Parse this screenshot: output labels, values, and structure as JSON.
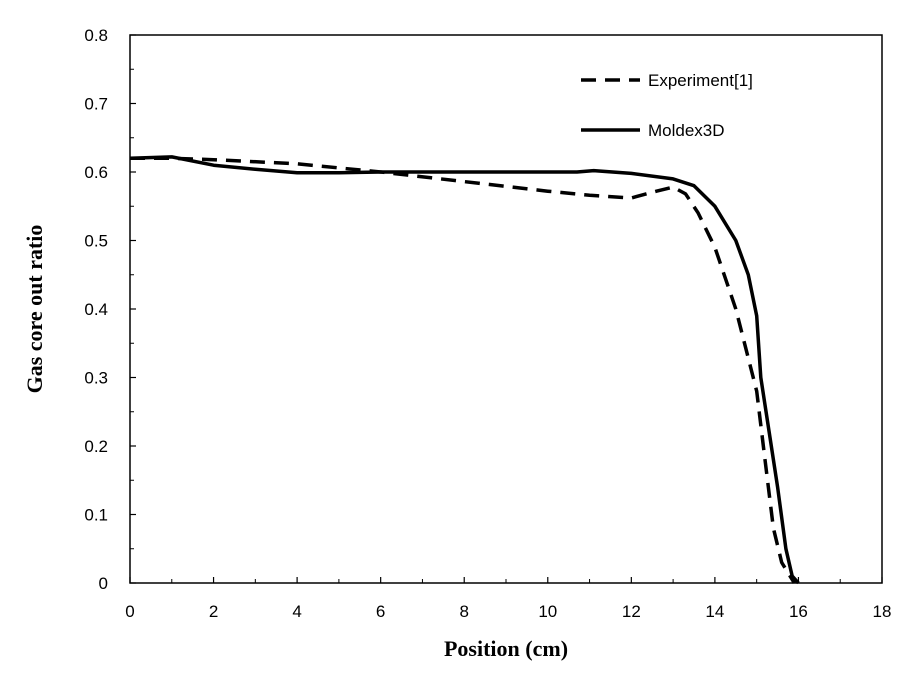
{
  "chart_data": {
    "type": "line",
    "xlabel": "Position (cm)",
    "ylabel": "Gas core out ratio",
    "xlim": [
      0,
      18
    ],
    "ylim": [
      0,
      0.8
    ],
    "x_ticks": [
      0,
      2,
      4,
      6,
      8,
      10,
      12,
      14,
      16,
      18
    ],
    "y_ticks": [
      0,
      0.1,
      0.2,
      0.3,
      0.4,
      0.5,
      0.6,
      0.7,
      0.8
    ],
    "x_tick_labels": [
      "0",
      "2",
      "4",
      "6",
      "8",
      "10",
      "12",
      "14",
      "16",
      "18"
    ],
    "y_tick_labels": [
      "0",
      "0.1",
      "0.2",
      "0.3",
      "0.4",
      "0.5",
      "0.6",
      "0.7",
      "0.8"
    ],
    "grid": false,
    "legend_position": "top-right",
    "series": [
      {
        "name": "Experiment[1]",
        "style": "dashed",
        "color": "#000000",
        "points": [
          [
            0,
            0.62
          ],
          [
            1,
            0.62
          ],
          [
            2,
            0.618
          ],
          [
            4,
            0.612
          ],
          [
            6,
            0.6
          ],
          [
            8,
            0.586
          ],
          [
            10,
            0.572
          ],
          [
            11,
            0.566
          ],
          [
            12,
            0.562
          ],
          [
            12.6,
            0.572
          ],
          [
            13,
            0.578
          ],
          [
            13.3,
            0.568
          ],
          [
            13.6,
            0.54
          ],
          [
            14,
            0.49
          ],
          [
            14.5,
            0.4
          ],
          [
            15,
            0.28
          ],
          [
            15.2,
            0.18
          ],
          [
            15.4,
            0.08
          ],
          [
            15.6,
            0.03
          ],
          [
            15.9,
            0
          ]
        ]
      },
      {
        "name": "Moldex3D",
        "style": "solid",
        "color": "#000000",
        "points": [
          [
            0,
            0.62
          ],
          [
            1,
            0.622
          ],
          [
            2,
            0.61
          ],
          [
            3,
            0.604
          ],
          [
            4,
            0.599
          ],
          [
            5,
            0.599
          ],
          [
            6,
            0.6
          ],
          [
            8,
            0.6
          ],
          [
            10,
            0.6
          ],
          [
            10.7,
            0.6
          ],
          [
            11.1,
            0.602
          ],
          [
            12,
            0.598
          ],
          [
            13,
            0.59
          ],
          [
            13.5,
            0.58
          ],
          [
            14,
            0.55
          ],
          [
            14.5,
            0.5
          ],
          [
            14.8,
            0.45
          ],
          [
            15,
            0.39
          ],
          [
            15.1,
            0.3
          ],
          [
            15.3,
            0.22
          ],
          [
            15.5,
            0.14
          ],
          [
            15.7,
            0.05
          ],
          [
            15.85,
            0.01
          ],
          [
            16,
            0
          ]
        ]
      }
    ]
  }
}
